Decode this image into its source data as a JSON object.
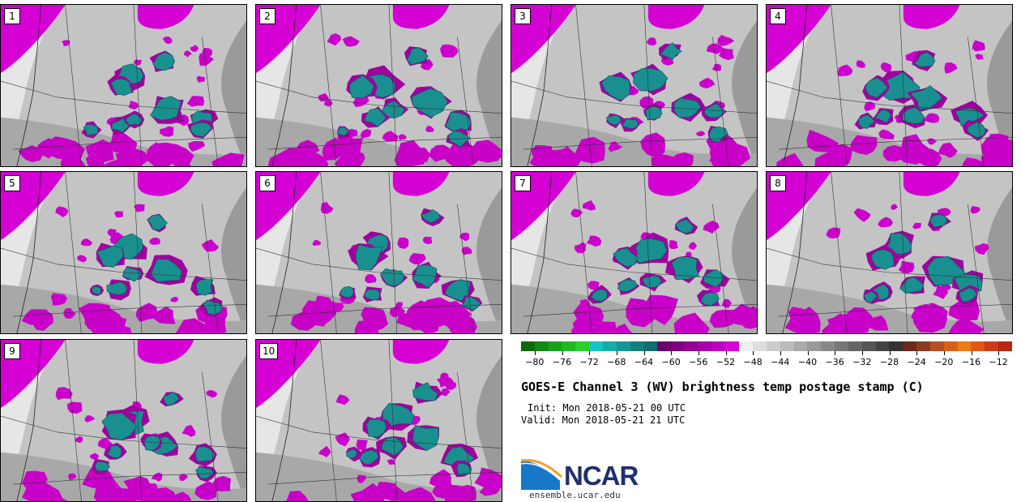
{
  "panels": [
    {
      "label": "1"
    },
    {
      "label": "2"
    },
    {
      "label": "3"
    },
    {
      "label": "4"
    },
    {
      "label": "5"
    },
    {
      "label": "6"
    },
    {
      "label": "7"
    },
    {
      "label": "8"
    },
    {
      "label": "9"
    },
    {
      "label": "10"
    }
  ],
  "colorbar": {
    "tick_labels": [
      "−80",
      "−76",
      "−72",
      "−68",
      "−64",
      "−60",
      "−56",
      "−52",
      "−48",
      "−44",
      "−40",
      "−36",
      "−32",
      "−28",
      "−24",
      "−20",
      "−16",
      "−12"
    ],
    "colors": [
      "#0a6b0a",
      "#118a11",
      "#18a018",
      "#1fb81f",
      "#2ad02a",
      "#19c3c3",
      "#17aaaa",
      "#159595",
      "#138080",
      "#126e6e",
      "#6a006a",
      "#7e007e",
      "#940094",
      "#aa00aa",
      "#c000c0",
      "#d800d8",
      "#eeeeee",
      "#dddddd",
      "#cccccc",
      "#bbbbbb",
      "#aaaaaa",
      "#999999",
      "#888888",
      "#777777",
      "#666666",
      "#555555",
      "#444444",
      "#333333",
      "#6b2a1a",
      "#8a3a1e",
      "#b4501f",
      "#d86018",
      "#f07a14",
      "#e2561a",
      "#cc3a1a",
      "#b8280f"
    ]
  },
  "title": "GOES-E Channel 3 (WV) brightness temp postage stamp (C)",
  "init": "Init: Mon 2018-05-21 00 UTC",
  "valid": "Valid: Mon 2018-05-21 21 UTC",
  "logo_text": "NCAR",
  "website": "ensemble.ucar.edu"
}
